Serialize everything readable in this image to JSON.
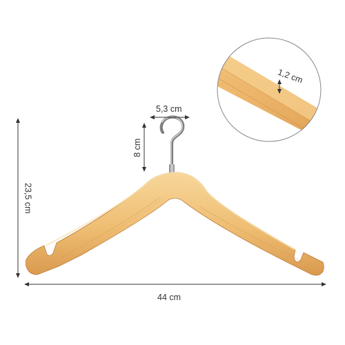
{
  "image": {
    "subject": "wooden-clothes-hanger",
    "colors": {
      "wood_light": "#f5cf8a",
      "wood_mid": "#e8b168",
      "wood_dark": "#c98c45",
      "hook_metal": "#9a9a9a",
      "dimension_line": "#333333",
      "text": "#333333"
    }
  },
  "dimensions": {
    "hook_width": "5,3 cm",
    "hook_height": "8 cm",
    "total_height": "23,5 cm",
    "total_width": "44 cm",
    "thickness": "1,2 cm"
  }
}
